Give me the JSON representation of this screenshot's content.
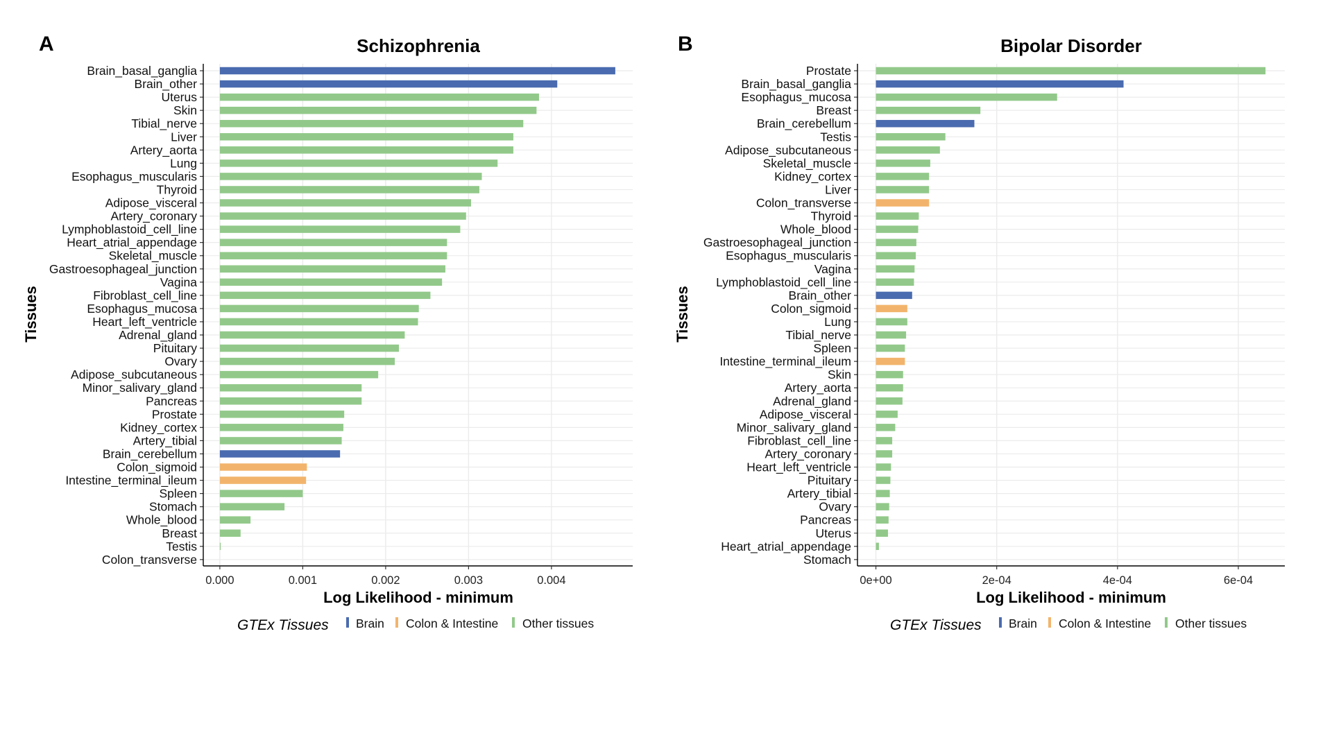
{
  "colors": {
    "Brain": "#4a6baf",
    "Colon & Intestine": "#f2b46c",
    "Other tissues": "#92c98a",
    "grid": "#ebebeb",
    "axis": "#000000"
  },
  "chart_data": [
    {
      "panel": "A",
      "type": "bar",
      "orientation": "horizontal",
      "title": "Schizophrenia",
      "xlabel": "Log Likelihood - minimum",
      "ylabel": "Tissues",
      "xlim": [
        -0.0002,
        0.00498
      ],
      "xticks": [
        0,
        0.001,
        0.002,
        0.003,
        0.004
      ],
      "xtick_labels": [
        "0.000",
        "0.001",
        "0.002",
        "0.003",
        "0.004"
      ],
      "grid": true,
      "legend_title": "GTEx Tissues",
      "legend_items": [
        "Brain",
        "Colon & Intestine",
        "Other tissues"
      ],
      "legend_position": "bottom",
      "bars": [
        {
          "tissue": "Brain_basal_ganglia",
          "value": 0.00477,
          "group": "Brain"
        },
        {
          "tissue": "Brain_other",
          "value": 0.00407,
          "group": "Brain"
        },
        {
          "tissue": "Uterus",
          "value": 0.00385,
          "group": "Other tissues"
        },
        {
          "tissue": "Skin",
          "value": 0.00382,
          "group": "Other tissues"
        },
        {
          "tissue": "Tibial_nerve",
          "value": 0.00366,
          "group": "Other tissues"
        },
        {
          "tissue": "Liver",
          "value": 0.00354,
          "group": "Other tissues"
        },
        {
          "tissue": "Artery_aorta",
          "value": 0.00354,
          "group": "Other tissues"
        },
        {
          "tissue": "Lung",
          "value": 0.00335,
          "group": "Other tissues"
        },
        {
          "tissue": "Esophagus_muscularis",
          "value": 0.00316,
          "group": "Other tissues"
        },
        {
          "tissue": "Thyroid",
          "value": 0.00313,
          "group": "Other tissues"
        },
        {
          "tissue": "Adipose_visceral",
          "value": 0.00303,
          "group": "Other tissues"
        },
        {
          "tissue": "Artery_coronary",
          "value": 0.00297,
          "group": "Other tissues"
        },
        {
          "tissue": "Lymphoblastoid_cell_line",
          "value": 0.0029,
          "group": "Other tissues"
        },
        {
          "tissue": "Heart_atrial_appendage",
          "value": 0.00274,
          "group": "Other tissues"
        },
        {
          "tissue": "Skeletal_muscle",
          "value": 0.00274,
          "group": "Other tissues"
        },
        {
          "tissue": "Gastroesophageal_junction",
          "value": 0.00272,
          "group": "Other tissues"
        },
        {
          "tissue": "Vagina",
          "value": 0.00268,
          "group": "Other tissues"
        },
        {
          "tissue": "Fibroblast_cell_line",
          "value": 0.00254,
          "group": "Other tissues"
        },
        {
          "tissue": "Esophagus_mucosa",
          "value": 0.0024,
          "group": "Other tissues"
        },
        {
          "tissue": "Heart_left_ventricle",
          "value": 0.00239,
          "group": "Other tissues"
        },
        {
          "tissue": "Adrenal_gland",
          "value": 0.00223,
          "group": "Other tissues"
        },
        {
          "tissue": "Pituitary",
          "value": 0.00216,
          "group": "Other tissues"
        },
        {
          "tissue": "Ovary",
          "value": 0.00211,
          "group": "Other tissues"
        },
        {
          "tissue": "Adipose_subcutaneous",
          "value": 0.00191,
          "group": "Other tissues"
        },
        {
          "tissue": "Minor_salivary_gland",
          "value": 0.00171,
          "group": "Other tissues"
        },
        {
          "tissue": "Pancreas",
          "value": 0.00171,
          "group": "Other tissues"
        },
        {
          "tissue": "Prostate",
          "value": 0.0015,
          "group": "Other tissues"
        },
        {
          "tissue": "Kidney_cortex",
          "value": 0.00149,
          "group": "Other tissues"
        },
        {
          "tissue": "Artery_tibial",
          "value": 0.00147,
          "group": "Other tissues"
        },
        {
          "tissue": "Brain_cerebellum",
          "value": 0.00145,
          "group": "Brain"
        },
        {
          "tissue": "Colon_sigmoid",
          "value": 0.00105,
          "group": "Colon & Intestine"
        },
        {
          "tissue": "Intestine_terminal_ileum",
          "value": 0.00104,
          "group": "Colon & Intestine"
        },
        {
          "tissue": "Spleen",
          "value": 0.001,
          "group": "Other tissues"
        },
        {
          "tissue": "Stomach",
          "value": 0.00078,
          "group": "Other tissues"
        },
        {
          "tissue": "Whole_blood",
          "value": 0.00037,
          "group": "Other tissues"
        },
        {
          "tissue": "Breast",
          "value": 0.00025,
          "group": "Other tissues"
        },
        {
          "tissue": "Testis",
          "value": 1e-05,
          "group": "Other tissues"
        },
        {
          "tissue": "Colon_transverse",
          "value": 0,
          "group": "Colon & Intestine"
        }
      ]
    },
    {
      "panel": "B",
      "type": "bar",
      "orientation": "horizontal",
      "title": "Bipolar Disorder",
      "xlabel": "Log Likelihood - minimum",
      "ylabel": "Tissues",
      "xlim": [
        -3.05e-05,
        0.000677
      ],
      "xticks": [
        0,
        0.0002,
        0.0004,
        0.0006
      ],
      "xtick_labels": [
        "0e+00",
        "2e-04",
        "4e-04",
        "6e-04"
      ],
      "grid": true,
      "legend_title": "GTEx Tissues",
      "legend_items": [
        "Brain",
        "Colon & Intestine",
        "Other tissues"
      ],
      "legend_position": "bottom",
      "bars": [
        {
          "tissue": "Prostate",
          "value": 0.000645,
          "group": "Other tissues"
        },
        {
          "tissue": "Brain_basal_ganglia",
          "value": 0.00041,
          "group": "Brain"
        },
        {
          "tissue": "Esophagus_mucosa",
          "value": 0.0003,
          "group": "Other tissues"
        },
        {
          "tissue": "Breast",
          "value": 0.000173,
          "group": "Other tissues"
        },
        {
          "tissue": "Brain_cerebellum",
          "value": 0.000163,
          "group": "Brain"
        },
        {
          "tissue": "Testis",
          "value": 0.000115,
          "group": "Other tissues"
        },
        {
          "tissue": "Adipose_subcutaneous",
          "value": 0.000106,
          "group": "Other tissues"
        },
        {
          "tissue": "Skeletal_muscle",
          "value": 9e-05,
          "group": "Other tissues"
        },
        {
          "tissue": "Kidney_cortex",
          "value": 8.8e-05,
          "group": "Other tissues"
        },
        {
          "tissue": "Liver",
          "value": 8.8e-05,
          "group": "Other tissues"
        },
        {
          "tissue": "Colon_transverse",
          "value": 8.8e-05,
          "group": "Colon & Intestine"
        },
        {
          "tissue": "Thyroid",
          "value": 7.1e-05,
          "group": "Other tissues"
        },
        {
          "tissue": "Whole_blood",
          "value": 7e-05,
          "group": "Other tissues"
        },
        {
          "tissue": "Gastroesophageal_junction",
          "value": 6.7e-05,
          "group": "Other tissues"
        },
        {
          "tissue": "Esophagus_muscularis",
          "value": 6.6e-05,
          "group": "Other tissues"
        },
        {
          "tissue": "Vagina",
          "value": 6.4e-05,
          "group": "Other tissues"
        },
        {
          "tissue": "Lymphoblastoid_cell_line",
          "value": 6.3e-05,
          "group": "Other tissues"
        },
        {
          "tissue": "Brain_other",
          "value": 6e-05,
          "group": "Brain"
        },
        {
          "tissue": "Colon_sigmoid",
          "value": 5.2e-05,
          "group": "Colon & Intestine"
        },
        {
          "tissue": "Lung",
          "value": 5.2e-05,
          "group": "Other tissues"
        },
        {
          "tissue": "Tibial_nerve",
          "value": 5e-05,
          "group": "Other tissues"
        },
        {
          "tissue": "Spleen",
          "value": 4.8e-05,
          "group": "Other tissues"
        },
        {
          "tissue": "Intestine_terminal_ileum",
          "value": 4.8e-05,
          "group": "Colon & Intestine"
        },
        {
          "tissue": "Skin",
          "value": 4.5e-05,
          "group": "Other tissues"
        },
        {
          "tissue": "Artery_aorta",
          "value": 4.5e-05,
          "group": "Other tissues"
        },
        {
          "tissue": "Adrenal_gland",
          "value": 4.4e-05,
          "group": "Other tissues"
        },
        {
          "tissue": "Adipose_visceral",
          "value": 3.6e-05,
          "group": "Other tissues"
        },
        {
          "tissue": "Minor_salivary_gland",
          "value": 3.2e-05,
          "group": "Other tissues"
        },
        {
          "tissue": "Fibroblast_cell_line",
          "value": 2.7e-05,
          "group": "Other tissues"
        },
        {
          "tissue": "Artery_coronary",
          "value": 2.7e-05,
          "group": "Other tissues"
        },
        {
          "tissue": "Heart_left_ventricle",
          "value": 2.5e-05,
          "group": "Other tissues"
        },
        {
          "tissue": "Pituitary",
          "value": 2.4e-05,
          "group": "Other tissues"
        },
        {
          "tissue": "Artery_tibial",
          "value": 2.3e-05,
          "group": "Other tissues"
        },
        {
          "tissue": "Ovary",
          "value": 2.2e-05,
          "group": "Other tissues"
        },
        {
          "tissue": "Pancreas",
          "value": 2.1e-05,
          "group": "Other tissues"
        },
        {
          "tissue": "Uterus",
          "value": 2e-05,
          "group": "Other tissues"
        },
        {
          "tissue": "Heart_atrial_appendage",
          "value": 5e-06,
          "group": "Other tissues"
        },
        {
          "tissue": "Stomach",
          "value": 0,
          "group": "Other tissues"
        }
      ]
    }
  ]
}
